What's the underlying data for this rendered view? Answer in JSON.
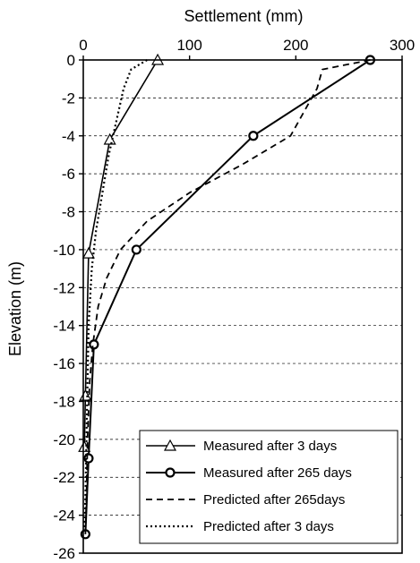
{
  "chart_data": {
    "type": "line",
    "xlabel": "Settlement  (mm)",
    "ylabel": "Elevation (m)",
    "xlim": [
      0,
      300
    ],
    "ylim": [
      -26,
      0
    ],
    "x_ticks": [
      0,
      100,
      200,
      300
    ],
    "y_ticks": [
      0,
      -2,
      -4,
      -6,
      -8,
      -10,
      -12,
      -14,
      -16,
      -18,
      -20,
      -22,
      -24,
      -26
    ],
    "x_axis_position": "top",
    "grid": "horizontal dashed",
    "legend_position": "bottom-right",
    "series": [
      {
        "name": "Measured after 3 days",
        "style": "solid-triangle",
        "color": "#000000",
        "points": [
          [
            70,
            0
          ],
          [
            25,
            -4.2
          ],
          [
            5,
            -10.2
          ],
          [
            2,
            -17.7
          ],
          [
            1,
            -20.4
          ]
        ]
      },
      {
        "name": "Measured after 265 days",
        "style": "solid-circle",
        "color": "#000000",
        "points": [
          [
            270,
            0
          ],
          [
            160,
            -4
          ],
          [
            50,
            -10
          ],
          [
            10,
            -15
          ],
          [
            5,
            -21
          ],
          [
            2,
            -25
          ]
        ]
      },
      {
        "name": "Predicted after 265days",
        "style": "dashed",
        "color": "#000000",
        "points": [
          [
            270,
            0
          ],
          [
            225,
            -0.5
          ],
          [
            220,
            -1.5
          ],
          [
            205,
            -3
          ],
          [
            195,
            -4
          ],
          [
            150,
            -5.5
          ],
          [
            100,
            -7
          ],
          [
            60,
            -8.5
          ],
          [
            35,
            -10
          ],
          [
            22,
            -11.5
          ],
          [
            14,
            -13
          ],
          [
            9,
            -15
          ],
          [
            6,
            -17
          ],
          [
            4,
            -20
          ],
          [
            3,
            -23
          ],
          [
            2,
            -25
          ]
        ]
      },
      {
        "name": "Predicted after 3 days",
        "style": "dotted",
        "color": "#000000",
        "points": [
          [
            60,
            0
          ],
          [
            45,
            -0.5
          ],
          [
            38,
            -1.5
          ],
          [
            32,
            -3
          ],
          [
            28,
            -4
          ],
          [
            24,
            -5
          ],
          [
            18,
            -7
          ],
          [
            12,
            -9
          ],
          [
            8,
            -11
          ],
          [
            5,
            -14
          ],
          [
            4,
            -17
          ],
          [
            3,
            -20
          ],
          [
            2,
            -23
          ],
          [
            1,
            -25
          ]
        ]
      }
    ]
  }
}
